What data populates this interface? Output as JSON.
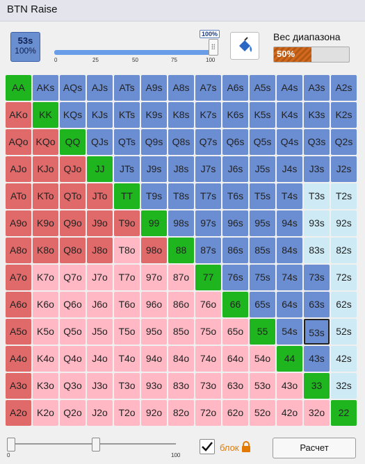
{
  "title": "BTN Raise",
  "selected": {
    "hand": "53s",
    "percent": "100%"
  },
  "freq_slider": {
    "value": "100%",
    "fraction": 1.0,
    "ticks": [
      "0",
      "25",
      "50",
      "75",
      "100"
    ]
  },
  "weight": {
    "label": "Вес диапазона",
    "value": "50%",
    "fraction": 0.5
  },
  "grid": {
    "rows": [
      [
        "AA",
        "AKs",
        "AQs",
        "AJs",
        "ATs",
        "A9s",
        "A8s",
        "A7s",
        "A6s",
        "A5s",
        "A4s",
        "A3s",
        "A2s"
      ],
      [
        "AKo",
        "KK",
        "KQs",
        "KJs",
        "KTs",
        "K9s",
        "K8s",
        "K7s",
        "K6s",
        "K5s",
        "K4s",
        "K3s",
        "K2s"
      ],
      [
        "AQo",
        "KQo",
        "QQ",
        "QJs",
        "QTs",
        "Q9s",
        "Q8s",
        "Q7s",
        "Q6s",
        "Q5s",
        "Q4s",
        "Q3s",
        "Q2s"
      ],
      [
        "AJo",
        "KJo",
        "QJo",
        "JJ",
        "JTs",
        "J9s",
        "J8s",
        "J7s",
        "J6s",
        "J5s",
        "J4s",
        "J3s",
        "J2s"
      ],
      [
        "ATo",
        "KTo",
        "QTo",
        "JTo",
        "TT",
        "T9s",
        "T8s",
        "T7s",
        "T6s",
        "T5s",
        "T4s",
        "T3s",
        "T2s"
      ],
      [
        "A9o",
        "K9o",
        "Q9o",
        "J9o",
        "T9o",
        "99",
        "98s",
        "97s",
        "96s",
        "95s",
        "94s",
        "93s",
        "92s"
      ],
      [
        "A8o",
        "K8o",
        "Q8o",
        "J8o",
        "T8o",
        "98o",
        "88",
        "87s",
        "86s",
        "85s",
        "84s",
        "83s",
        "82s"
      ],
      [
        "A7o",
        "K7o",
        "Q7o",
        "J7o",
        "T7o",
        "97o",
        "87o",
        "77",
        "76s",
        "75s",
        "74s",
        "73s",
        "72s"
      ],
      [
        "A6o",
        "K6o",
        "Q6o",
        "J6o",
        "T6o",
        "96o",
        "86o",
        "76o",
        "66",
        "65s",
        "64s",
        "63s",
        "62s"
      ],
      [
        "A5o",
        "K5o",
        "Q5o",
        "J5o",
        "T5o",
        "95o",
        "85o",
        "75o",
        "65o",
        "55",
        "54s",
        "53s",
        "52s"
      ],
      [
        "A4o",
        "K4o",
        "Q4o",
        "J4o",
        "T4o",
        "94o",
        "84o",
        "74o",
        "64o",
        "54o",
        "44",
        "43s",
        "42s"
      ],
      [
        "A3o",
        "K3o",
        "Q3o",
        "J3o",
        "T3o",
        "93o",
        "83o",
        "73o",
        "63o",
        "53o",
        "43o",
        "33",
        "32s"
      ],
      [
        "A2o",
        "K2o",
        "Q2o",
        "J2o",
        "T2o",
        "92o",
        "82o",
        "72o",
        "62o",
        "52o",
        "42o",
        "32o",
        "22"
      ]
    ],
    "colors": {
      "pair": "#1fb51f",
      "suited_in_range": "#6b8ed3",
      "offsuit_in_range": "#e06a6a",
      "offsuit_out": "#ffb8c4",
      "suited_out": "#cdeaf5"
    },
    "suited_out": [
      "T3s",
      "T2s",
      "93s",
      "92s",
      "83s",
      "82s",
      "72s",
      "62s",
      "52s",
      "42s",
      "32s"
    ],
    "offsuit_in": [
      "AKo",
      "AQo",
      "AJo",
      "ATo",
      "A9o",
      "A8o",
      "A7o",
      "A6o",
      "A5o",
      "A4o",
      "A3o",
      "A2o",
      "KQo",
      "KJo",
      "KTo",
      "K9o",
      "K8o",
      "QJo",
      "QTo",
      "Q9o",
      "Q8o",
      "JTo",
      "J9o",
      "J8o",
      "T9o",
      "98o"
    ],
    "selected_cell": "53s"
  },
  "bottom_slider": {
    "labels": [
      "0",
      "100"
    ],
    "thumb1": 0.0,
    "thumb2": 0.5
  },
  "lock": {
    "checked": true,
    "label": "блок"
  },
  "calc_button": "Расчет"
}
